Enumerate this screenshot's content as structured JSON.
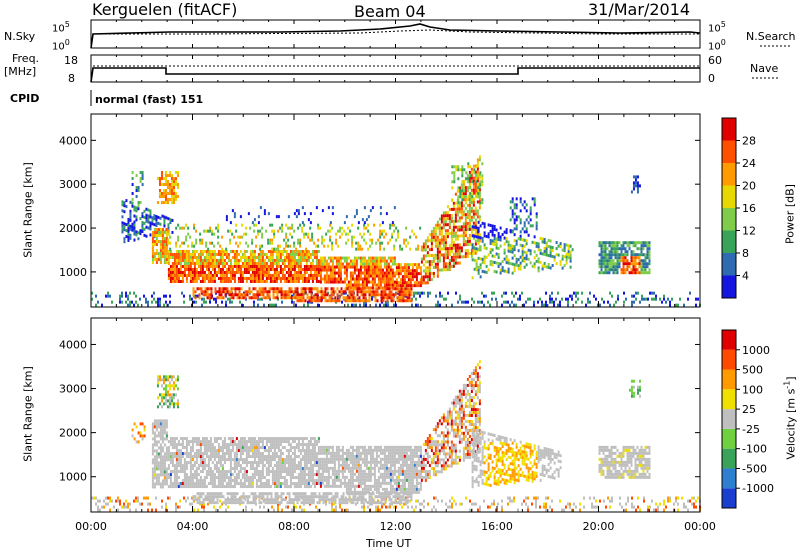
{
  "header": {
    "station": "Kerguelen (fitACF)",
    "beam": "Beam 04",
    "date": "31/Mar/2014"
  },
  "strip_labels": {
    "nsky": "N.Sky",
    "nsky_top": "10^5",
    "nsky_bottom": "10^0",
    "nsearch": "N.Search",
    "nsearch_top": "10^5",
    "nsearch_bottom": "10^0",
    "freq": "Freq.",
    "freq_unit": "[MHz]",
    "freq_top": "18",
    "freq_bottom": "8",
    "nave": "Nave",
    "nave_top": "60",
    "nave_bottom": "0",
    "cpid": "CPID",
    "cpid_value": "normal (fast) 151"
  },
  "chart_data": [
    {
      "type": "heatmap",
      "panel": "power",
      "ylabel": "Slant Range [km]",
      "yticks": [
        "1000",
        "2000",
        "3000",
        "4000"
      ],
      "ylim": [
        200,
        4600
      ],
      "colorbar_label": "Power [dB]",
      "colorbar_ticks": [
        "4",
        "8",
        "12",
        "16",
        "20",
        "24",
        "28"
      ],
      "colorbar_colors": [
        "#1515e0",
        "#2f6bb0",
        "#3aa35a",
        "#7fcc4a",
        "#e6d800",
        "#ff9a00",
        "#ff5000",
        "#e00000"
      ]
    },
    {
      "type": "heatmap",
      "panel": "velocity",
      "ylabel": "Slant Range [km]",
      "yticks": [
        "1000",
        "2000",
        "3000",
        "4000"
      ],
      "ylim": [
        200,
        4600
      ],
      "colorbar_label": "Velocity [m s^-1]",
      "colorbar_ticks": [
        "1000",
        "500",
        "100",
        "25",
        "-25",
        "-100",
        "-500",
        "-1000"
      ],
      "colorbar_colors": [
        "#1a3fd0",
        "#2f7fd0",
        "#3aa35a",
        "#6fd040",
        "#bfbfbf",
        "#f0e000",
        "#ff9a00",
        "#ff4a00",
        "#e00000"
      ]
    }
  ],
  "x_axis": {
    "label": "Time UT",
    "ticks": [
      "00:00",
      "04:00",
      "08:00",
      "12:00",
      "16:00",
      "20:00",
      "00:00"
    ]
  }
}
